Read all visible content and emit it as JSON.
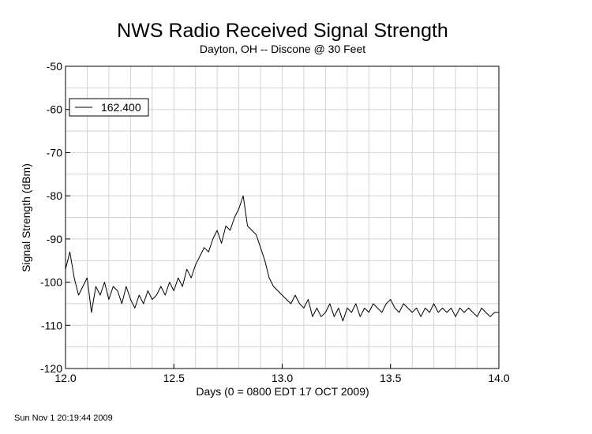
{
  "chart_data": {
    "type": "line",
    "title": "NWS Radio Received Signal Strength",
    "subtitle": "Dayton, OH -- Discone @ 30 Feet",
    "xlabel": "Days (0 = 0800 EDT 17 OCT 2009)",
    "ylabel": "Signal Strength (dBm)",
    "xlim": [
      12.0,
      14.0
    ],
    "ylim": [
      -120,
      -50
    ],
    "xticks": [
      12.0,
      12.5,
      13.0,
      13.5,
      14.0
    ],
    "xtick_labels": [
      "12.0",
      "12.5",
      "13.0",
      "13.5",
      "14.0"
    ],
    "yticks": [
      -50,
      -60,
      -70,
      -80,
      -90,
      -100,
      -110,
      -120
    ],
    "ytick_labels": [
      "-50",
      "-60",
      "-70",
      "-80",
      "-90",
      "-100",
      "-110",
      "-120"
    ],
    "grid": true,
    "minor_grid_step_x": 0.1,
    "minor_grid_step_y": 5,
    "legend": "top-left",
    "series": [
      {
        "name": "162.400",
        "color": "#000000",
        "x": [
          12.0,
          12.02,
          12.04,
          12.06,
          12.08,
          12.1,
          12.12,
          12.14,
          12.16,
          12.18,
          12.2,
          12.22,
          12.24,
          12.26,
          12.28,
          12.3,
          12.32,
          12.34,
          12.36,
          12.38,
          12.4,
          12.42,
          12.44,
          12.46,
          12.48,
          12.5,
          12.52,
          12.54,
          12.56,
          12.58,
          12.6,
          12.62,
          12.64,
          12.66,
          12.68,
          12.7,
          12.72,
          12.74,
          12.76,
          12.78,
          12.8,
          12.82,
          12.84,
          12.86,
          12.88,
          12.9,
          12.92,
          12.94,
          12.96,
          12.98,
          13.0,
          13.02,
          13.04,
          13.06,
          13.08,
          13.1,
          13.12,
          13.14,
          13.16,
          13.18,
          13.2,
          13.22,
          13.24,
          13.26,
          13.28,
          13.3,
          13.32,
          13.34,
          13.36,
          13.38,
          13.4,
          13.42,
          13.44,
          13.46,
          13.48,
          13.5,
          13.52,
          13.54,
          13.56,
          13.58,
          13.6,
          13.62,
          13.64,
          13.66,
          13.68,
          13.7,
          13.72,
          13.74,
          13.76,
          13.78,
          13.8,
          13.82,
          13.84,
          13.86,
          13.88,
          13.9,
          13.92,
          13.94,
          13.96,
          13.98,
          14.0
        ],
        "y": [
          -97,
          -93,
          -99,
          -103,
          -101,
          -99,
          -107,
          -101,
          -103,
          -100,
          -104,
          -101,
          -102,
          -105,
          -101,
          -104,
          -106,
          -103,
          -105,
          -102,
          -104,
          -103,
          -101,
          -103,
          -100,
          -102,
          -99,
          -101,
          -97,
          -99,
          -96,
          -94,
          -92,
          -93,
          -90,
          -88,
          -91,
          -87,
          -88,
          -85,
          -83,
          -80,
          -87,
          -88,
          -89,
          -92,
          -95,
          -99,
          -101,
          -102,
          -103,
          -104,
          -105,
          -103,
          -105,
          -106,
          -104,
          -108,
          -106,
          -108,
          -107,
          -105,
          -108,
          -106,
          -109,
          -106,
          -107,
          -105,
          -108,
          -106,
          -107,
          -105,
          -106,
          -107,
          -105,
          -104,
          -106,
          -107,
          -105,
          -106,
          -107,
          -106,
          -108,
          -106,
          -107,
          -105,
          -107,
          -106,
          -107,
          -106,
          -108,
          -106,
          -107,
          -106,
          -107,
          -108,
          -106,
          -107,
          -108,
          -107,
          -107
        ]
      }
    ]
  },
  "footer": {
    "timestamp": "Sun Nov  1 20:19:44 2009"
  }
}
